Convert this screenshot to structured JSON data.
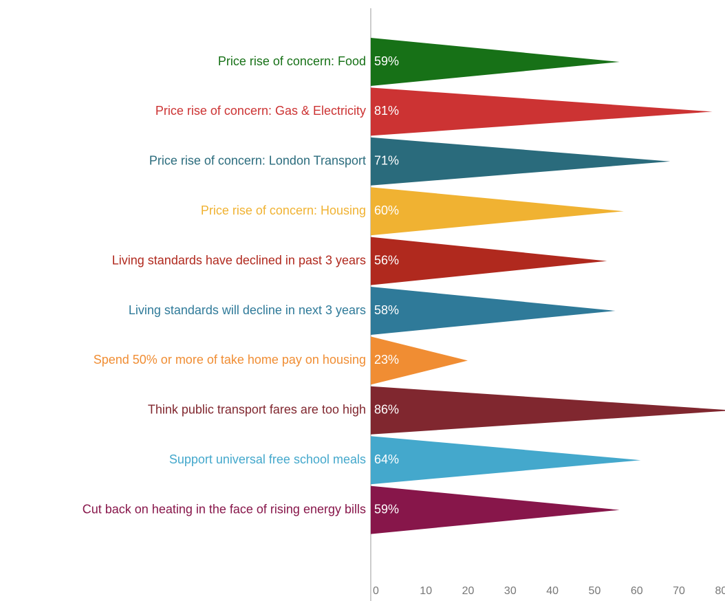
{
  "chart_data": {
    "type": "bar",
    "orientation": "horizontal",
    "categories": [
      "Price rise of concern: Food",
      "Price rise of concern: Gas & Electricity",
      "Price rise of concern: London Transport",
      "Price rise of concern: Housing",
      "Living standards have declined in past 3 years",
      "Living standards will decline in next 3 years",
      "Spend 50% or more of take home pay on housing",
      "Think public transport fares are too high",
      "Support universal free school meals",
      "Cut back on heating in the face of rising energy bills"
    ],
    "values": [
      59,
      81,
      71,
      60,
      56,
      58,
      23,
      86,
      64,
      59
    ],
    "value_labels": [
      "59%",
      "81%",
      "71%",
      "60%",
      "56%",
      "58%",
      "23%",
      "86%",
      "64%",
      "59%"
    ],
    "colors": [
      "#177117",
      "#cc3333",
      "#2a6b7c",
      "#f0b232",
      "#b0291e",
      "#2f7a99",
      "#f08d33",
      "#80272f",
      "#44a8cc",
      "#87164a"
    ],
    "xlim": [
      0,
      84
    ],
    "xticks": [
      0,
      10,
      20,
      30,
      40,
      50,
      60,
      70,
      80
    ],
    "grid": false
  }
}
